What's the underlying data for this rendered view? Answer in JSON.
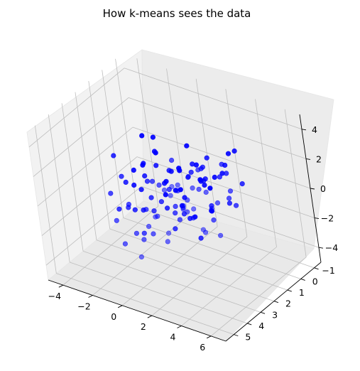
{
  "chart_data": {
    "type": "scatter3d",
    "title": "How k-means sees the data",
    "xlabel": "",
    "ylabel": "",
    "zlabel": "",
    "x_ticks": [
      "−4",
      "−2",
      "0",
      "2",
      "4",
      "6"
    ],
    "y_ticks": [
      "−1",
      "0",
      "1",
      "2",
      "3",
      "4",
      "5"
    ],
    "z_ticks": [
      "−4",
      "−2",
      "0",
      "2",
      "4"
    ],
    "xlim": [
      -5,
      7
    ],
    "ylim": [
      -1.5,
      5.6
    ],
    "zlim": [
      -5,
      5
    ],
    "grid": true,
    "marker_color": "#0000ff",
    "points": [
      [
        -3.7,
        -0.8,
        0.4
      ],
      [
        -3.3,
        -0.2,
        -1.0
      ],
      [
        -3.0,
        0.4,
        -2.1
      ],
      [
        -2.6,
        -0.5,
        0.9
      ],
      [
        -2.2,
        0.8,
        -0.6
      ],
      [
        -2.8,
        1.2,
        -2.8
      ],
      [
        -1.9,
        -0.3,
        -1.7
      ],
      [
        -1.5,
        0.6,
        0.2
      ],
      [
        -1.2,
        1.5,
        -1.2
      ],
      [
        -1.6,
        -0.9,
        -2.6
      ],
      [
        -0.9,
        0.2,
        -0.3
      ],
      [
        -0.6,
        1.1,
        -2.0
      ],
      [
        -0.4,
        -0.6,
        1.0
      ],
      [
        -0.2,
        1.8,
        -0.9
      ],
      [
        0.1,
        0.5,
        -1.5
      ],
      [
        0.3,
        -0.4,
        0.1
      ],
      [
        0.5,
        1.4,
        -0.2
      ],
      [
        0.7,
        0.9,
        -2.4
      ],
      [
        0.9,
        2.2,
        0.6
      ],
      [
        1.0,
        -0.1,
        -0.8
      ],
      [
        1.2,
        0.7,
        1.3
      ],
      [
        1.4,
        1.9,
        -1.1
      ],
      [
        1.6,
        2.6,
        0.0
      ],
      [
        1.8,
        0.4,
        -1.9
      ],
      [
        2.0,
        1.6,
        1.7
      ],
      [
        2.1,
        2.9,
        -0.5
      ],
      [
        2.3,
        1.0,
        0.9
      ],
      [
        2.5,
        2.3,
        2.1
      ],
      [
        2.7,
        3.1,
        0.8
      ],
      [
        2.9,
        1.7,
        1.5
      ],
      [
        3.0,
        2.8,
        2.6
      ],
      [
        3.2,
        3.6,
        1.2
      ],
      [
        3.4,
        2.1,
        2.9
      ],
      [
        3.5,
        3.3,
        0.4
      ],
      [
        3.7,
        2.5,
        3.2
      ],
      [
        3.9,
        3.9,
        2.2
      ],
      [
        4.0,
        3.0,
        3.6
      ],
      [
        4.2,
        4.3,
        1.8
      ],
      [
        4.4,
        3.5,
        2.8
      ],
      [
        4.6,
        4.1,
        3.4
      ],
      [
        4.8,
        3.2,
        1.4
      ],
      [
        5.0,
        4.6,
        2.5
      ],
      [
        5.2,
        3.8,
        3.1
      ],
      [
        5.4,
        4.4,
        0.9
      ],
      [
        5.6,
        2.7,
        2.0
      ],
      [
        5.8,
        4.9,
        1.6
      ],
      [
        6.0,
        4.0,
        0.6
      ],
      [
        5.1,
        2.4,
        3.9
      ],
      [
        4.3,
        1.9,
        2.4
      ],
      [
        3.6,
        4.7,
        3.0
      ],
      [
        -3.5,
        0.9,
        -1.4
      ],
      [
        -2.4,
        2.0,
        -1.9
      ],
      [
        -1.1,
        2.4,
        -2.9
      ],
      [
        -0.2,
        2.9,
        -0.6
      ],
      [
        0.6,
        3.4,
        -1.6
      ],
      [
        1.5,
        3.8,
        0.2
      ],
      [
        2.4,
        4.2,
        -0.9
      ],
      [
        3.3,
        4.9,
        0.5
      ],
      [
        -3.1,
        -1.0,
        -0.7
      ],
      [
        -2.0,
        0.1,
        0.6
      ],
      [
        -1.3,
        -0.7,
        -0.9
      ],
      [
        -0.7,
        0.0,
        -2.7
      ],
      [
        0.0,
        -0.8,
        -1.3
      ],
      [
        0.8,
        -0.5,
        -2.9
      ],
      [
        1.7,
        -0.2,
        -0.1
      ],
      [
        2.6,
        0.1,
        0.7
      ],
      [
        3.4,
        0.6,
        1.9
      ],
      [
        4.1,
        1.3,
        0.1
      ],
      [
        4.7,
        1.8,
        2.7
      ],
      [
        5.5,
        2.2,
        1.1
      ],
      [
        -2.9,
        1.7,
        -0.2
      ],
      [
        -1.7,
        2.6,
        -1.0
      ],
      [
        -0.8,
        3.2,
        -2.2
      ],
      [
        0.2,
        3.7,
        -1.9
      ],
      [
        1.1,
        4.1,
        -0.4
      ],
      [
        2.2,
        4.6,
        1.0
      ],
      [
        -3.8,
        0.1,
        -2.3
      ],
      [
        -2.5,
        -0.7,
        -3.1
      ],
      [
        -1.4,
        0.3,
        -1.2
      ],
      [
        -0.3,
        0.9,
        0.5
      ],
      [
        0.4,
        1.7,
        -2.6
      ],
      [
        1.3,
        2.4,
        -0.7
      ],
      [
        2.2,
        3.0,
        1.6
      ],
      [
        3.1,
        3.7,
        2.4
      ],
      [
        4.0,
        4.5,
        3.7
      ],
      [
        4.9,
        5.2,
        2.9
      ],
      [
        -2.1,
        1.3,
        -2.5
      ],
      [
        -0.5,
        2.1,
        -1.4
      ],
      [
        1.9,
        2.7,
        3.3
      ],
      [
        0.3,
        -1.1,
        -2.0
      ],
      [
        -1.8,
        -1.2,
        -1.6
      ],
      [
        2.8,
        -0.3,
        1.8
      ],
      [
        3.8,
        0.2,
        2.7
      ],
      [
        5.3,
        1.4,
        1.9
      ],
      [
        6.2,
        3.1,
        3.0
      ],
      [
        -3.2,
        2.3,
        -1.0
      ],
      [
        -2.3,
        3.0,
        -2.0
      ],
      [
        -4.0,
        1.0,
        0.3
      ],
      [
        -4.2,
        -0.4,
        -1.8
      ],
      [
        1.6,
        1.2,
        -3.2
      ],
      [
        0.9,
        0.0,
        -0.5
      ],
      [
        -0.1,
        -0.2,
        -3.4
      ],
      [
        2.4,
        0.8,
        2.2
      ],
      [
        3.0,
        1.5,
        -0.3
      ],
      [
        4.5,
        2.9,
        0.3
      ],
      [
        5.7,
        3.6,
        2.4
      ],
      [
        4.1,
        5.0,
        4.0
      ],
      [
        2.9,
        4.4,
        2.9
      ],
      [
        1.4,
        3.3,
        1.9
      ],
      [
        0.1,
        2.5,
        1.1
      ],
      [
        -1.0,
        1.8,
        0.2
      ],
      [
        -2.7,
        0.3,
        -0.3
      ],
      [
        -3.6,
        1.5,
        -2.8
      ],
      [
        -1.5,
        3.4,
        -3.0
      ],
      [
        0.7,
        4.5,
        -2.3
      ]
    ]
  }
}
